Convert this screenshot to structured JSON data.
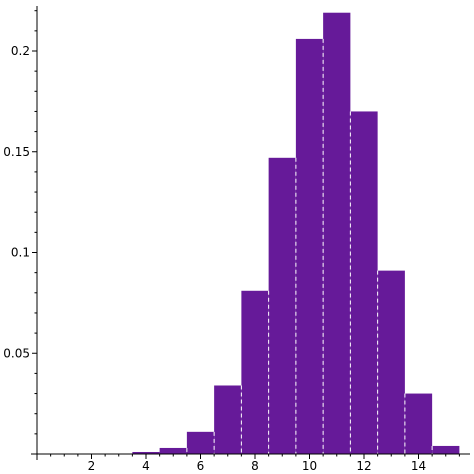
{
  "chart_data": {
    "type": "bar",
    "title": "",
    "xlabel": "",
    "ylabel": "",
    "xlim": [
      0,
      15.5
    ],
    "ylim": [
      0,
      0.222
    ],
    "grid": false,
    "bar_color": "#661a99",
    "bar_separator_color": "#ffffff",
    "bins": [
      {
        "x": 1,
        "value": 0.0
      },
      {
        "x": 2,
        "value": 0.0
      },
      {
        "x": 3,
        "value": 0.0
      },
      {
        "x": 4,
        "value": 0.001
      },
      {
        "x": 5,
        "value": 0.003
      },
      {
        "x": 6,
        "value": 0.011
      },
      {
        "x": 7,
        "value": 0.034
      },
      {
        "x": 8,
        "value": 0.081
      },
      {
        "x": 9,
        "value": 0.147
      },
      {
        "x": 10,
        "value": 0.206
      },
      {
        "x": 11,
        "value": 0.219
      },
      {
        "x": 12,
        "value": 0.17
      },
      {
        "x": 13,
        "value": 0.091
      },
      {
        "x": 14,
        "value": 0.03
      },
      {
        "x": 15,
        "value": 0.004
      }
    ],
    "x_ticks": [
      {
        "value": 2,
        "label": "2"
      },
      {
        "value": 4,
        "label": "4"
      },
      {
        "value": 6,
        "label": "6"
      },
      {
        "value": 8,
        "label": "8"
      },
      {
        "value": 10,
        "label": "10"
      },
      {
        "value": 12,
        "label": "12"
      },
      {
        "value": 14,
        "label": "14"
      }
    ],
    "y_ticks": [
      {
        "value": 0.05,
        "label": "0.05"
      },
      {
        "value": 0.1,
        "label": "0.1"
      },
      {
        "value": 0.15,
        "label": "0.15"
      },
      {
        "value": 0.2,
        "label": "0.2"
      }
    ]
  }
}
